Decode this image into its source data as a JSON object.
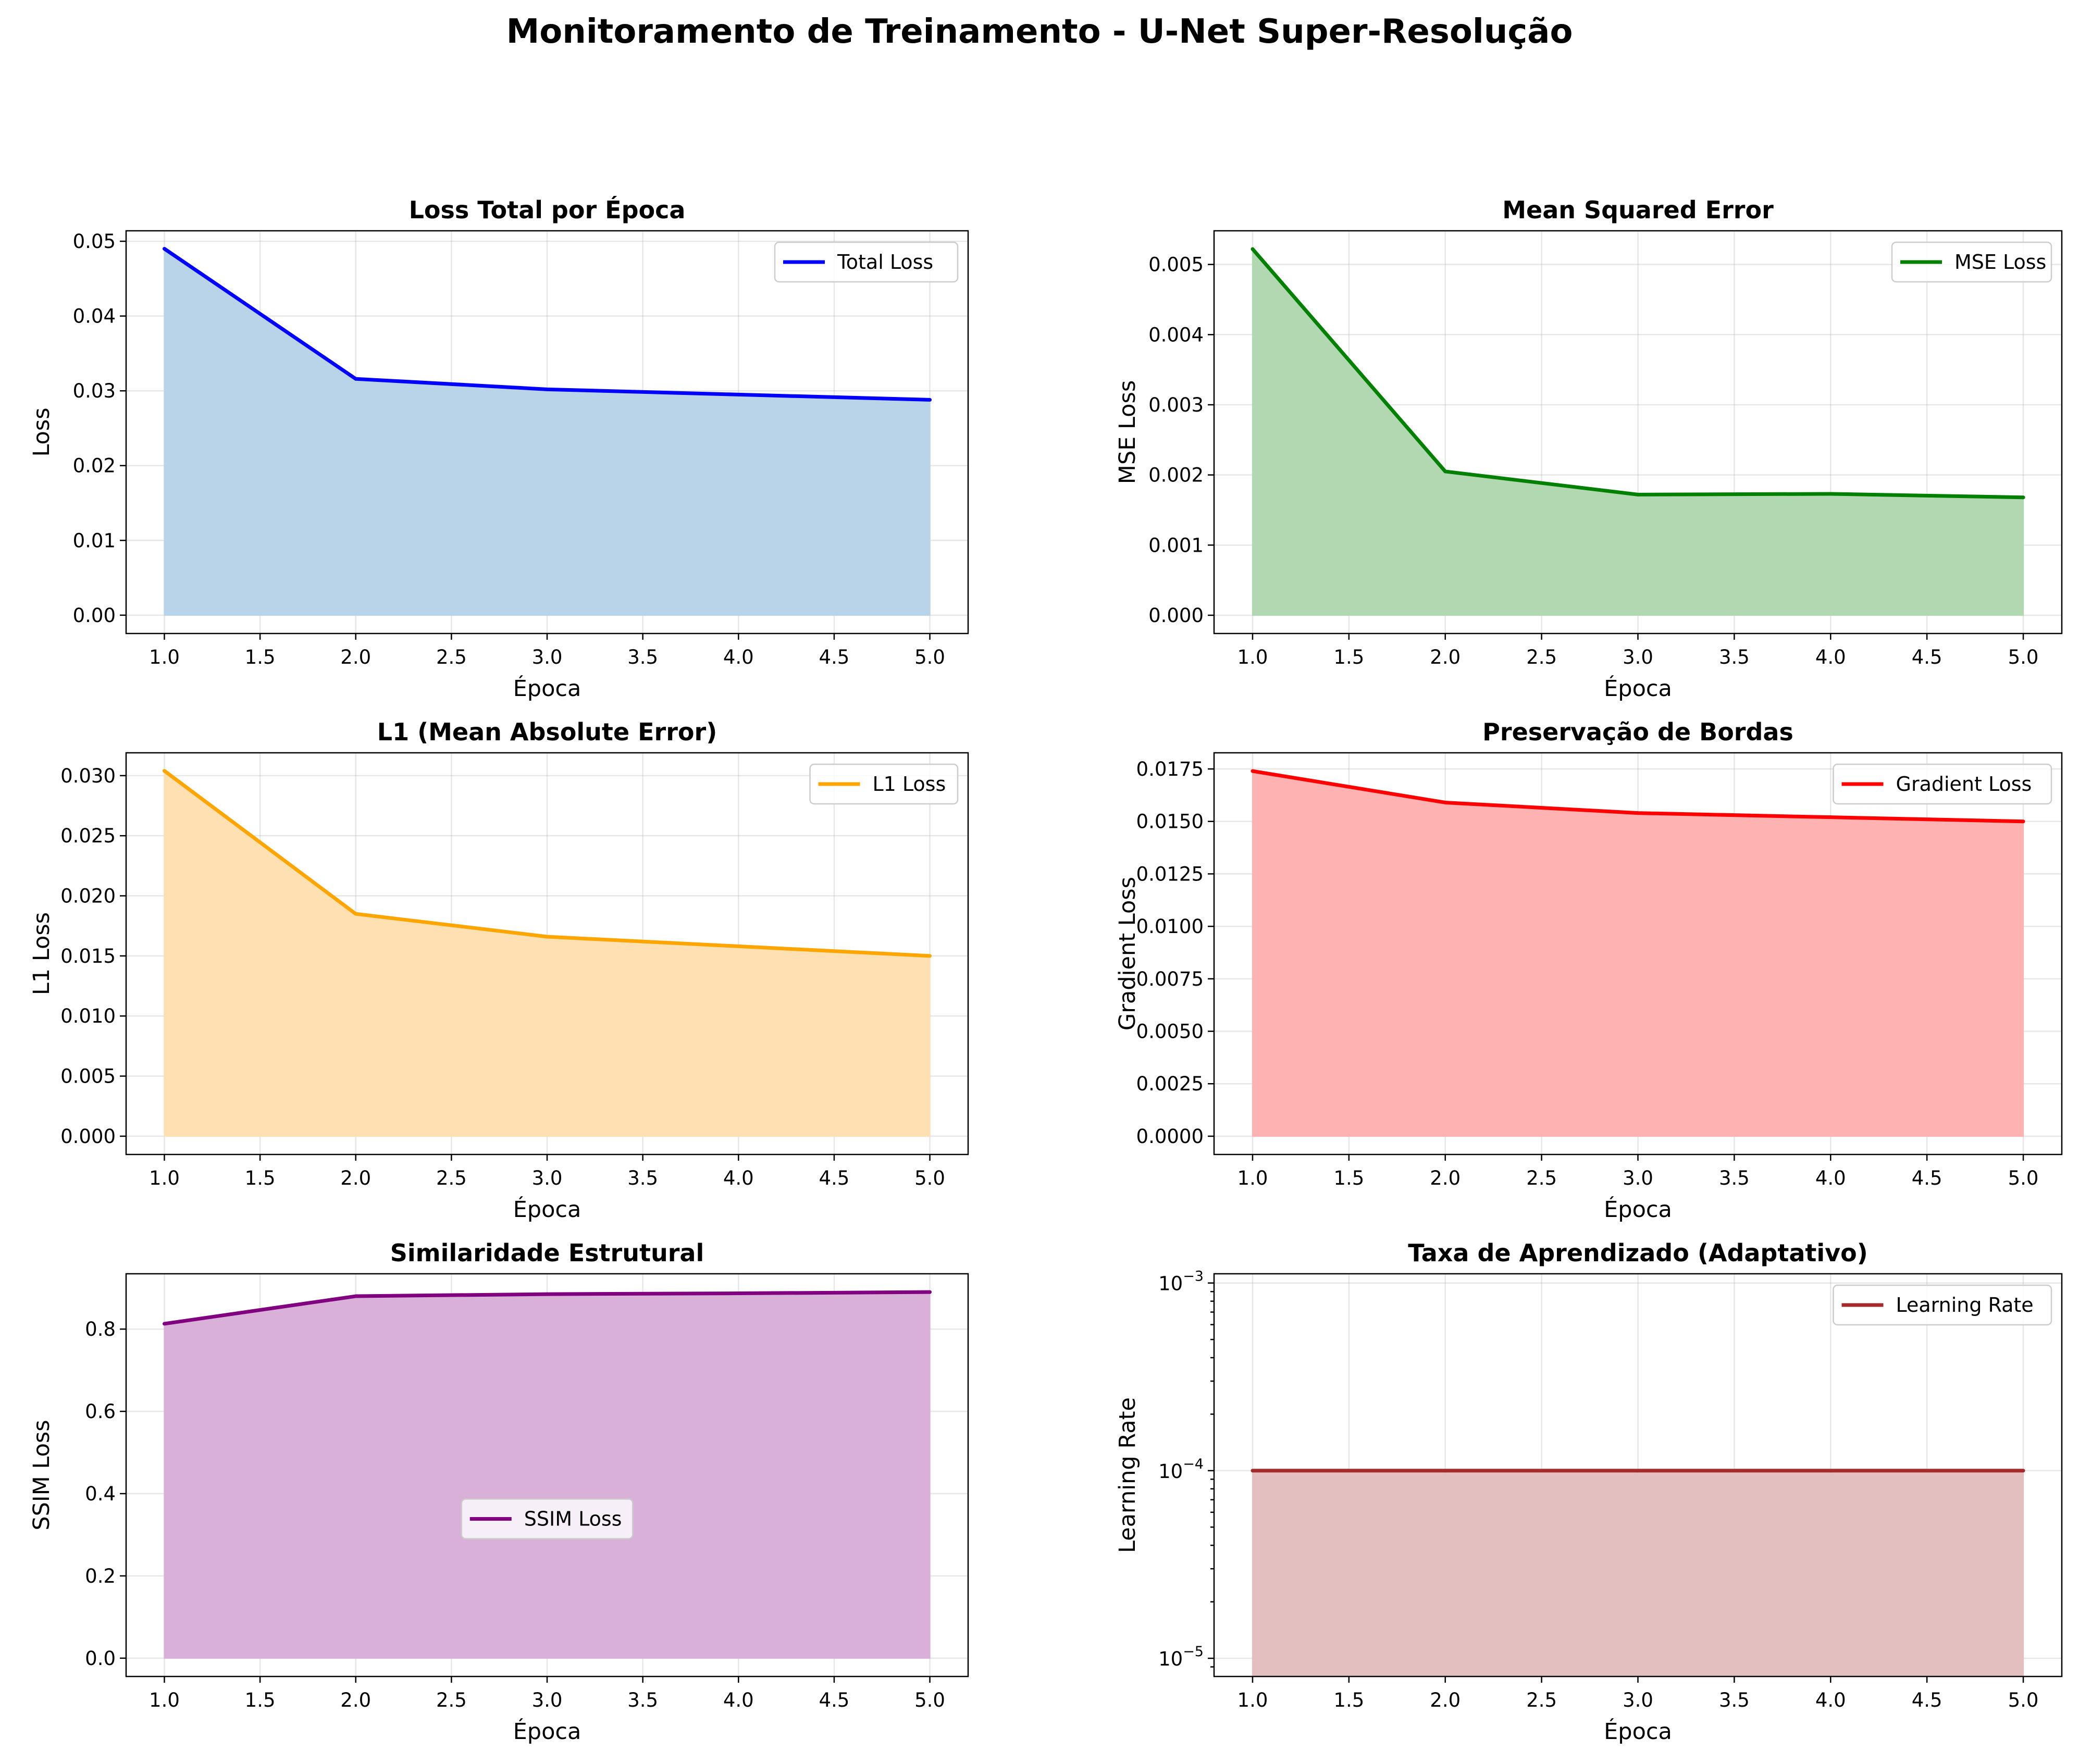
{
  "suptitle": "Monitoramento de Treinamento - U-Net Super-Resolução",
  "chart_data": [
    {
      "type": "area",
      "title": "Loss Total por Época",
      "xlabel": "Época",
      "ylabel": "Loss",
      "x": [
        1,
        2,
        3,
        4,
        5
      ],
      "xlim": [
        0.8,
        5.2
      ],
      "xticks": [
        1.0,
        1.5,
        2.0,
        2.5,
        3.0,
        3.5,
        4.0,
        4.5,
        5.0
      ],
      "ylim": [
        -0.00245,
        0.0514
      ],
      "yticks": [
        0.0,
        0.01,
        0.02,
        0.03,
        0.04,
        0.05
      ],
      "ytick_decimals": 2,
      "grid": true,
      "legend": "upper right",
      "series": [
        {
          "name": "Total Loss",
          "values": [
            0.049,
            0.0316,
            0.0302,
            0.0295,
            0.0288
          ],
          "color": "#0000ff",
          "fill": "#b9d3e8"
        }
      ]
    },
    {
      "type": "area",
      "title": "Mean Squared Error",
      "xlabel": "Época",
      "ylabel": "MSE Loss",
      "x": [
        1,
        2,
        3,
        4,
        5
      ],
      "xlim": [
        0.8,
        5.2
      ],
      "xticks": [
        1.0,
        1.5,
        2.0,
        2.5,
        3.0,
        3.5,
        4.0,
        4.5,
        5.0
      ],
      "ylim": [
        -0.00026,
        0.00548
      ],
      "yticks": [
        0.0,
        0.001,
        0.002,
        0.003,
        0.004,
        0.005
      ],
      "ytick_decimals": 3,
      "grid": true,
      "legend": "upper right",
      "series": [
        {
          "name": "MSE Loss",
          "values": [
            0.00522,
            0.00205,
            0.00172,
            0.00173,
            0.00168
          ],
          "color": "#008000",
          "fill": "#b2d8b2"
        }
      ]
    },
    {
      "type": "area",
      "title": "L1 (Mean Absolute Error)",
      "xlabel": "Época",
      "ylabel": "L1 Loss",
      "x": [
        1,
        2,
        3,
        4,
        5
      ],
      "xlim": [
        0.8,
        5.2
      ],
      "xticks": [
        1.0,
        1.5,
        2.0,
        2.5,
        3.0,
        3.5,
        4.0,
        4.5,
        5.0
      ],
      "ylim": [
        -0.00152,
        0.0319
      ],
      "yticks": [
        0.0,
        0.005,
        0.01,
        0.015,
        0.02,
        0.025,
        0.03
      ],
      "ytick_decimals": 3,
      "grid": true,
      "legend": "upper right",
      "series": [
        {
          "name": "L1 Loss",
          "values": [
            0.0304,
            0.0185,
            0.0166,
            0.0158,
            0.015
          ],
          "color": "#ffa500",
          "fill": "#ffe0b2"
        }
      ]
    },
    {
      "type": "area",
      "title": "Preservação de Bordas",
      "xlabel": "Época",
      "ylabel": "Gradient Loss",
      "x": [
        1,
        2,
        3,
        4,
        5
      ],
      "xlim": [
        0.8,
        5.2
      ],
      "xticks": [
        1.0,
        1.5,
        2.0,
        2.5,
        3.0,
        3.5,
        4.0,
        4.5,
        5.0
      ],
      "ylim": [
        -0.00087,
        0.01827
      ],
      "yticks": [
        0.0,
        0.0025,
        0.005,
        0.0075,
        0.01,
        0.0125,
        0.015,
        0.0175
      ],
      "ytick_decimals": 4,
      "grid": true,
      "legend": "upper right",
      "series": [
        {
          "name": "Gradient Loss",
          "values": [
            0.0174,
            0.0159,
            0.0154,
            0.0152,
            0.015
          ],
          "color": "#ff0000",
          "fill": "#ffb2b2"
        }
      ]
    },
    {
      "type": "area",
      "title": "Similaridade Estrutural",
      "xlabel": "Época",
      "ylabel": "SSIM Loss",
      "x": [
        1,
        2,
        3,
        4,
        5
      ],
      "xlim": [
        0.8,
        5.2
      ],
      "xticks": [
        1.0,
        1.5,
        2.0,
        2.5,
        3.0,
        3.5,
        4.0,
        4.5,
        5.0
      ],
      "ylim": [
        -0.0445,
        0.9345
      ],
      "yticks": [
        0.0,
        0.2,
        0.4,
        0.6,
        0.8
      ],
      "ytick_decimals": 1,
      "grid": true,
      "legend": "center",
      "series": [
        {
          "name": "SSIM Loss",
          "values": [
            0.813,
            0.88,
            0.885,
            0.887,
            0.89
          ],
          "color": "#800080",
          "fill": "#d8b0d8"
        }
      ]
    },
    {
      "type": "area",
      "title": "Taxa de Aprendizado (Adaptativo)",
      "xlabel": "Época",
      "ylabel": "Learning Rate",
      "x": [
        1,
        2,
        3,
        4,
        5
      ],
      "xlim": [
        0.8,
        5.2
      ],
      "xticks": [
        1.0,
        1.5,
        2.0,
        2.5,
        3.0,
        3.5,
        4.0,
        4.5,
        5.0
      ],
      "yscale": "log",
      "ylim": [
        8e-06,
        0.00112
      ],
      "ytick_labels": [
        {
          "value": 1e-05,
          "base": "10",
          "exp": "−5"
        },
        {
          "value": 0.0001,
          "base": "10",
          "exp": "−4"
        },
        {
          "value": 0.001,
          "base": "10",
          "exp": "−3"
        }
      ],
      "grid": true,
      "legend": "upper right",
      "series": [
        {
          "name": "Learning Rate",
          "values": [
            0.0001,
            0.0001,
            0.0001,
            0.0001,
            0.0001
          ],
          "color": "#a52a2a",
          "fill": "#e4bfbf"
        }
      ]
    }
  ]
}
